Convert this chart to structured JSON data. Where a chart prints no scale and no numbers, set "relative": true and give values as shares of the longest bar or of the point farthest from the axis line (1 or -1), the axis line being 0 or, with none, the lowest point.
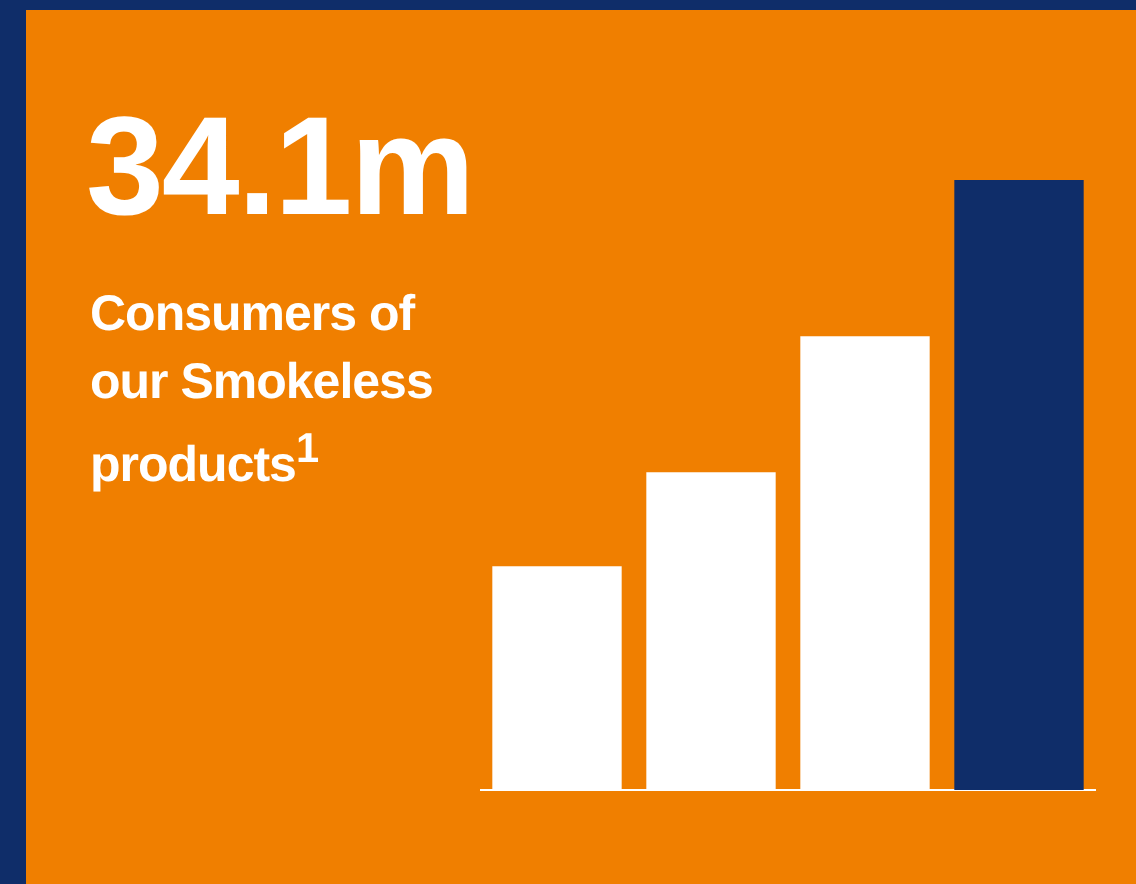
{
  "chart_data": {
    "type": "bar",
    "title": "34.1m",
    "subtitle": "Consumers of our Smokeless products$^{1}$",
    "categories": [
      null,
      null,
      null,
      null
    ],
    "values": [
      0.367,
      0.521,
      0.744,
      1
    ],
    "colors": [
      "#ffffff",
      "#ffffff",
      "#ffffff",
      "#0f2d69"
    ],
    "relative": true
  }
}
